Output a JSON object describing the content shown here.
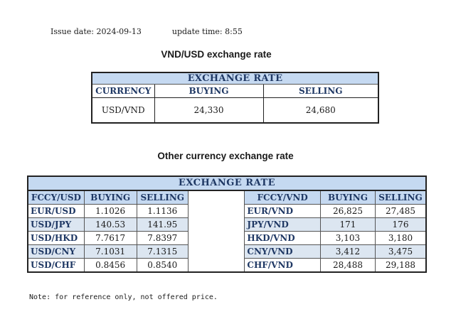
{
  "meta": {
    "issue_date_label": "Issue date:",
    "issue_date": "2024-09-13",
    "update_time_label": "update time:",
    "update_time": "8:55"
  },
  "vnd_usd": {
    "heading": "VND/USD exchange rate",
    "table_title": "EXCHANGE RATE",
    "columns": [
      "CURRENCY",
      "BUYING",
      "SELLING"
    ],
    "row": {
      "currency": "USD/VND",
      "buying": "24,330",
      "selling": "24,680"
    }
  },
  "other": {
    "heading": "Other currency exchange rate",
    "table_title": "EXCHANGE  RATE",
    "left_columns": [
      "FCCY/USD",
      "BUYING",
      "SELLING"
    ],
    "right_columns": [
      "FCCY/VND",
      "BUYING",
      "SELLING"
    ],
    "rows": [
      {
        "left_pair": "EUR/USD",
        "left_buy": "1.1026",
        "left_sell": "1.1136",
        "right_pair": "EUR/VND",
        "right_buy": "26,825",
        "right_sell": "27,485"
      },
      {
        "left_pair": "USD/JPY",
        "left_buy": "140.53",
        "left_sell": "141.95",
        "right_pair": "JPY/VND",
        "right_buy": "171",
        "right_sell": "176"
      },
      {
        "left_pair": "USD/HKD",
        "left_buy": "7.7617",
        "left_sell": "7.8397",
        "right_pair": "HKD/VND",
        "right_buy": "3,103",
        "right_sell": "3,180"
      },
      {
        "left_pair": "USD/CNY",
        "left_buy": "7.1031",
        "left_sell": "7.1315",
        "right_pair": "CNY/VND",
        "right_buy": "3,412",
        "right_sell": "3,475"
      },
      {
        "left_pair": "USD/CHF",
        "left_buy": "0.8456",
        "left_sell": "0.8540",
        "right_pair": "CHF/VND",
        "right_buy": "28,488",
        "right_sell": "29,188"
      }
    ]
  },
  "note": "Note: for reference only, not offered price.",
  "colors": {
    "header_fill": "#c5d9f1",
    "alt_row_fill": "#dce6f1",
    "header_text": "#1f3864"
  }
}
